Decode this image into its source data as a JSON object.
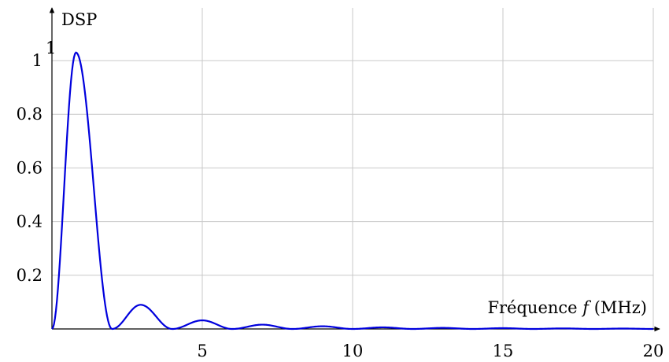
{
  "chart_data": {
    "type": "line",
    "ylabel": "DSP",
    "xlabel_parts": {
      "before": "Fréquence ",
      "var": "f",
      "after": " (MHz)"
    },
    "xlim": [
      0,
      20
    ],
    "ylim": [
      0,
      1.15
    ],
    "x_ticks": [
      5,
      10,
      15,
      20
    ],
    "y_ticks": [
      0.2,
      0.4,
      0.6,
      0.8,
      1
    ],
    "y_tick_labels": [
      "0.2",
      "0.4",
      "0.6",
      "0.8",
      "1"
    ],
    "stray_label": "1",
    "grid": true,
    "line_color": "#0000dd",
    "series": [
      {
        "peaks": [
          {
            "x": 0.8,
            "y": 1.03
          },
          {
            "x": 2.95,
            "y": 0.09
          },
          {
            "x": 5.0,
            "y": 0.032
          },
          {
            "x": 7.0,
            "y": 0.016
          },
          {
            "x": 9.0,
            "y": 0.01
          },
          {
            "x": 11.0,
            "y": 0.006
          },
          {
            "x": 13.0,
            "y": 0.004
          },
          {
            "x": 15.0,
            "y": 0.003
          },
          {
            "x": 17.0,
            "y": 0.002
          },
          {
            "x": 19.0,
            "y": 0.0015
          }
        ],
        "nulls": [
          0,
          2.0,
          4.0,
          6.0,
          8.0,
          10.0,
          12.0,
          14.0,
          16.0,
          18.0,
          20.0
        ]
      }
    ]
  }
}
